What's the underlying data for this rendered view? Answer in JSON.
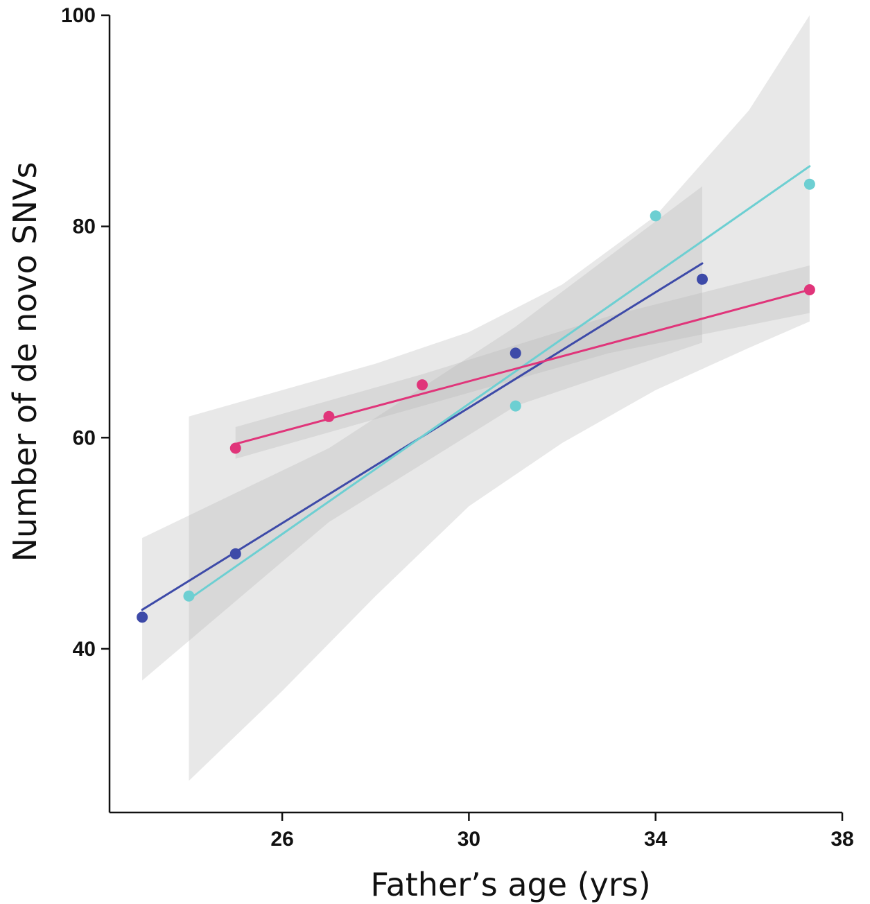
{
  "chart_data": {
    "type": "scatter",
    "title": "",
    "xlabel": "Father’s age (yrs)",
    "ylabel": "Number of de novo SNVs",
    "xlim": [
      22.3,
      38
    ],
    "ylim": [
      24.5,
      100
    ],
    "x_ticks": [
      {
        "value": 26,
        "label": "26"
      },
      {
        "value": 30,
        "label": "30"
      },
      {
        "value": 34,
        "label": "34"
      },
      {
        "value": 38,
        "label": "38"
      }
    ],
    "y_ticks": [
      {
        "value": 40,
        "label": "40"
      },
      {
        "value": 60,
        "label": "60"
      },
      {
        "value": 80,
        "label": "80"
      },
      {
        "value": 100,
        "label": "100"
      }
    ],
    "grid": false,
    "series": [
      {
        "color": "#3d4aa8",
        "points": [
          [
            23,
            43
          ],
          [
            25,
            49
          ],
          [
            31,
            68
          ],
          [
            35,
            75
          ]
        ],
        "fit": [
          [
            23,
            43.7
          ],
          [
            35,
            76.5
          ]
        ],
        "band": {
          "x": [
            23,
            27,
            31,
            35
          ],
          "lower": [
            37.0,
            52.0,
            63.0,
            69.0
          ],
          "upper": [
            50.5,
            59.0,
            70.5,
            83.8
          ]
        }
      },
      {
        "color": "#6dcfd2",
        "points": [
          [
            24,
            45
          ],
          [
            31,
            63
          ],
          [
            34,
            81
          ],
          [
            37.3,
            84
          ]
        ],
        "fit": [
          [
            24,
            44.7
          ],
          [
            37.3,
            85.7
          ]
        ],
        "band": {
          "x": [
            24,
            26,
            28,
            30,
            32,
            34,
            36,
            37.3
          ],
          "lower": [
            27.5,
            36.0,
            45.0,
            53.5,
            59.5,
            64.5,
            68.5,
            71.0
          ],
          "upper": [
            62.0,
            64.5,
            67.0,
            70.0,
            74.5,
            81.0,
            91.0,
            100.0
          ]
        }
      },
      {
        "color": "#e0357a",
        "points": [
          [
            25,
            59
          ],
          [
            27,
            62
          ],
          [
            29,
            65
          ],
          [
            37.3,
            74
          ]
        ],
        "fit": [
          [
            25,
            59.4
          ],
          [
            37.3,
            74.0
          ]
        ],
        "band": {
          "x": [
            25,
            29,
            33,
            37.3
          ],
          "lower": [
            58.0,
            63.0,
            68.0,
            71.8
          ],
          "upper": [
            61.0,
            66.0,
            71.5,
            76.3
          ]
        }
      }
    ]
  }
}
